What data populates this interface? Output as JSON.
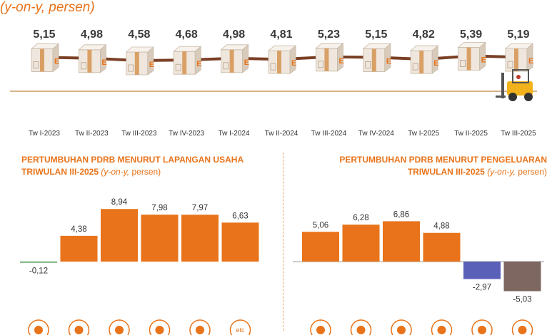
{
  "header": {
    "subtitle": "(y-on-y, persen)"
  },
  "colors": {
    "accent": "#e8731a",
    "bar": "#e8731a",
    "negative_small": "#3f8f3f",
    "negative_blue": "#5a5fb8",
    "negative_brown": "#7d6760",
    "line": "#7a3f24",
    "baseline": "#d9b28a"
  },
  "chart_data": [
    {
      "type": "line",
      "categories": [
        "Tw I-2023",
        "Tw II-2023",
        "Tw III-2023",
        "Tw IV-2023",
        "Tw I-2024",
        "Tw II-2024",
        "Tw III-2024",
        "Tw IV-2024",
        "Tw I-2025",
        "Tw II-2025",
        "Tw III-2025"
      ],
      "values": [
        5.15,
        4.98,
        4.58,
        4.68,
        4.98,
        4.81,
        5.23,
        5.15,
        4.82,
        5.39,
        5.19
      ],
      "labels": [
        "5,15",
        "4,98",
        "4,58",
        "4,68",
        "4,98",
        "4,81",
        "5,23",
        "5,15",
        "4,82",
        "5,39",
        "5,19"
      ],
      "icons": [
        "box-icon",
        "box-icon",
        "box-icon",
        "box-icon",
        "box-icon",
        "box-icon",
        "box-icon",
        "box-icon",
        "box-icon",
        "box-icon",
        "box-icon"
      ],
      "extra_icon": "forklift-icon"
    },
    {
      "type": "bar",
      "title_line1": "PERTUMBUHAN PDRB MENURUT LAPANGAN USAHA",
      "title_line2": "TRIWULAN III-2025",
      "title_unit_italic": "(y-on-y,",
      "title_unit_plain": " persen)",
      "values": [
        -0.12,
        4.38,
        8.94,
        7.98,
        7.97,
        6.63
      ],
      "labels": [
        "-0,12",
        "4,38",
        "8,94",
        "7,98",
        "7,97",
        "6,63"
      ],
      "colors": [
        "#3f8f3f",
        "#e8731a",
        "#e8731a",
        "#e8731a",
        "#e8731a",
        "#e8731a"
      ],
      "icons": [
        "mining-icon",
        "agriculture-icon",
        "manufacturing-icon",
        "trade-icon",
        "transport-icon",
        "etc-icon"
      ],
      "icon_text": [
        "",
        "",
        "",
        "",
        "",
        "etc"
      ]
    },
    {
      "type": "bar",
      "title_line1": "PERTUMBUHAN PDRB MENURUT PENGELUARAN",
      "title_line2": "TRIWULAN III-2025",
      "title_unit_italic": "(y-on-y,",
      "title_unit_plain": " persen)",
      "values": [
        5.06,
        6.28,
        6.86,
        4.88,
        -2.97,
        -5.03
      ],
      "labels": [
        "5,06",
        "6,28",
        "6,86",
        "4,88",
        "-2,97",
        "-5,03"
      ],
      "colors": [
        "#e8731a",
        "#e8731a",
        "#e8731a",
        "#e8731a",
        "#5a5fb8",
        "#7d6760"
      ],
      "icons": [
        "consumption-icon",
        "investment-icon",
        "government-icon",
        "household-icon",
        "export-icon",
        "import-icon"
      ]
    }
  ]
}
